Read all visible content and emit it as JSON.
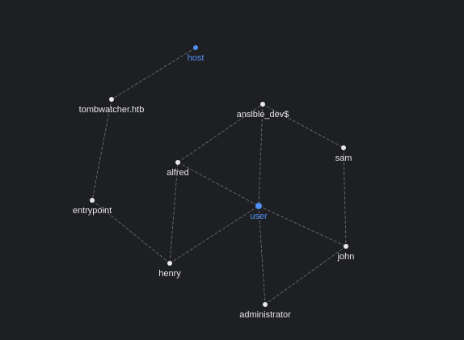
{
  "graph": {
    "nodes": [
      {
        "id": "host",
        "label": "host",
        "kind": "accent"
      },
      {
        "id": "tombwatcher",
        "label": "tombwatcher.htb",
        "kind": "default"
      },
      {
        "id": "entrypoint",
        "label": "entrypoint",
        "kind": "default"
      },
      {
        "id": "henry",
        "label": "henry",
        "kind": "default"
      },
      {
        "id": "alfred",
        "label": "alfred",
        "kind": "default"
      },
      {
        "id": "ansible_dev",
        "label": "ansible_dev$",
        "kind": "default"
      },
      {
        "id": "sam",
        "label": "sam",
        "kind": "default"
      },
      {
        "id": "user",
        "label": "user",
        "kind": "accent"
      },
      {
        "id": "john",
        "label": "john",
        "kind": "default"
      },
      {
        "id": "administrator",
        "label": "administrator",
        "kind": "default"
      }
    ],
    "edges": [
      {
        "from": "host",
        "to": "tombwatcher"
      },
      {
        "from": "tombwatcher",
        "to": "entrypoint"
      },
      {
        "from": "entrypoint",
        "to": "henry"
      },
      {
        "from": "henry",
        "to": "alfred"
      },
      {
        "from": "henry",
        "to": "user"
      },
      {
        "from": "alfred",
        "to": "ansible_dev"
      },
      {
        "from": "alfred",
        "to": "user"
      },
      {
        "from": "ansible_dev",
        "to": "sam"
      },
      {
        "from": "ansible_dev",
        "to": "user"
      },
      {
        "from": "sam",
        "to": "john"
      },
      {
        "from": "user",
        "to": "john"
      },
      {
        "from": "user",
        "to": "administrator"
      },
      {
        "from": "john",
        "to": "administrator"
      }
    ],
    "colors": {
      "background": "#1e1f22",
      "node": "#e8e8ea",
      "accent": "#4f8ff0",
      "edge": "#8e8f93"
    }
  }
}
